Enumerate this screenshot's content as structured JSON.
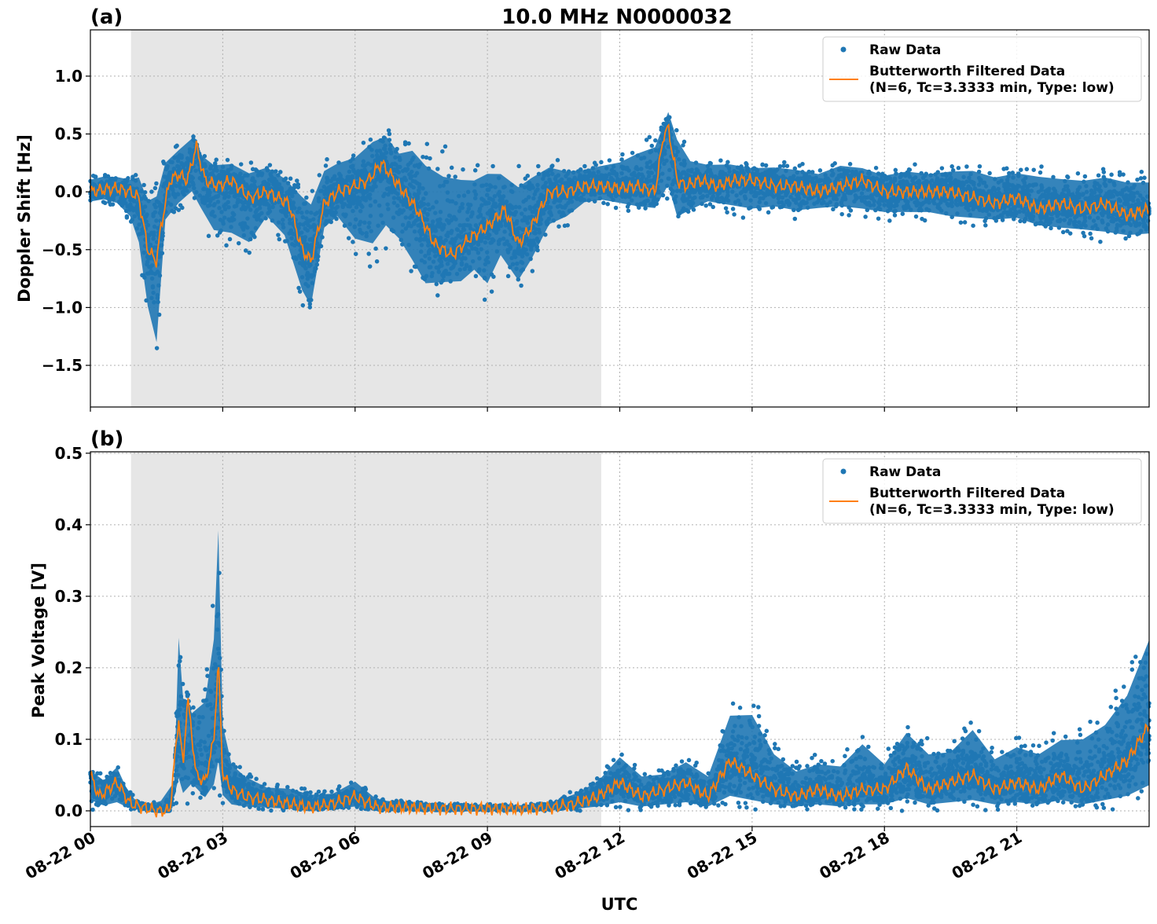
{
  "figure": {
    "title": "10.0 MHz N0000032",
    "x_label": "UTC"
  },
  "colors": {
    "raw": "#1f77b4",
    "filtered": "#ff7f0e",
    "shade": "#e6e6e6",
    "grid": "#b0b0b0"
  },
  "chart_data": [
    {
      "type": "scatter",
      "panel_label": "(a)",
      "ylabel": "Doppler Shift [Hz]",
      "xlim": [
        0,
        24
      ],
      "ylim": [
        -1.86,
        1.4
      ],
      "x_ticks": [
        0,
        3,
        6,
        9,
        12,
        15,
        18,
        21
      ],
      "x_tick_labels": [
        "08-22 00",
        "08-22 03",
        "08-22 06",
        "08-22 09",
        "08-22 12",
        "08-22 15",
        "08-22 18",
        "08-22 21"
      ],
      "y_ticks": [
        1.0,
        0.5,
        0.0,
        -0.5,
        -1.0,
        -1.5
      ],
      "y_tick_labels": [
        "1.0",
        "0.5",
        "0.0",
        "−0.5",
        "−1.0",
        "−1.5"
      ],
      "grid": true,
      "shaded_interval": [
        0.92,
        11.58
      ],
      "legend": {
        "position": "upper right",
        "raw": "Raw Data",
        "filtered_line1": "Butterworth Filtered Data",
        "filtered_line2": "(N=6, Tc=3.3333 min, Type: low)"
      },
      "series": [
        {
          "name": "Raw Data",
          "kind": "scatter-band",
          "x": [
            0,
            0.3,
            0.6,
            0.9,
            1.1,
            1.3,
            1.5,
            1.7,
            2.0,
            2.3,
            2.5,
            2.8,
            3.2,
            3.6,
            4.0,
            4.4,
            4.8,
            5.0,
            5.3,
            5.6,
            6.0,
            6.4,
            6.7,
            7.0,
            7.3,
            7.6,
            8.0,
            8.4,
            8.7,
            9.0,
            9.3,
            9.7,
            10.0,
            10.4,
            10.8,
            11.2,
            11.6,
            12.0,
            12.4,
            12.8,
            13.1,
            13.3,
            13.6,
            14.0,
            14.5,
            15.0,
            15.5,
            16.0,
            16.5,
            17.0,
            17.5,
            18.0,
            18.5,
            19.0,
            19.5,
            20.0,
            20.5,
            21.0,
            21.5,
            22.0,
            22.5,
            23.0,
            23.5,
            24.0
          ],
          "upper": [
            0.15,
            0.18,
            0.17,
            0.15,
            0.2,
            0.1,
            0.2,
            0.4,
            0.45,
            0.55,
            0.35,
            0.3,
            0.3,
            0.25,
            0.3,
            0.2,
            0.15,
            0.1,
            0.3,
            0.35,
            0.4,
            0.55,
            0.6,
            0.45,
            0.55,
            0.45,
            0.4,
            0.35,
            0.3,
            0.35,
            0.3,
            0.25,
            0.3,
            0.3,
            0.25,
            0.25,
            0.3,
            0.35,
            0.45,
            0.55,
            0.75,
            0.6,
            0.35,
            0.3,
            0.3,
            0.25,
            0.28,
            0.25,
            0.22,
            0.3,
            0.25,
            0.2,
            0.25,
            0.22,
            0.25,
            0.28,
            0.22,
            0.25,
            0.25,
            0.2,
            0.2,
            0.22,
            0.2,
            0.18
          ],
          "lower": [
            -0.12,
            -0.1,
            -0.15,
            -0.3,
            -0.6,
            -1.2,
            -1.6,
            -0.3,
            -0.2,
            -0.1,
            -0.3,
            -0.5,
            -0.55,
            -0.6,
            -0.3,
            -0.5,
            -1.0,
            -1.15,
            -0.4,
            -0.3,
            -0.6,
            -0.7,
            -0.5,
            -0.6,
            -0.8,
            -1.0,
            -0.9,
            -0.9,
            -0.8,
            -1.0,
            -0.7,
            -0.9,
            -0.7,
            -0.4,
            -0.3,
            -0.15,
            -0.12,
            -0.15,
            -0.2,
            -0.2,
            -0.15,
            -0.35,
            -0.25,
            -0.15,
            -0.2,
            -0.25,
            -0.2,
            -0.25,
            -0.2,
            -0.2,
            -0.25,
            -0.25,
            -0.25,
            -0.25,
            -0.3,
            -0.3,
            -0.3,
            -0.3,
            -0.35,
            -0.4,
            -0.4,
            -0.45,
            -0.45,
            -0.45
          ]
        },
        {
          "name": "Butterworth Filtered Data",
          "kind": "line",
          "x": [
            0,
            0.3,
            0.6,
            0.9,
            1.1,
            1.3,
            1.5,
            1.6,
            1.8,
            2.0,
            2.2,
            2.4,
            2.6,
            2.9,
            3.2,
            3.6,
            4.0,
            4.5,
            4.8,
            5.0,
            5.3,
            5.6,
            6.0,
            6.3,
            6.6,
            6.9,
            7.1,
            7.4,
            7.8,
            8.2,
            8.6,
            9.0,
            9.4,
            9.7,
            10.0,
            10.4,
            10.8,
            11.2,
            11.6,
            12.0,
            12.4,
            12.8,
            13.0,
            13.1,
            13.3,
            13.5,
            13.8,
            14.2,
            14.6,
            15.0,
            15.5,
            16.0,
            16.5,
            17.0,
            17.5,
            18.0,
            18.5,
            19.0,
            19.5,
            20.0,
            20.5,
            21.0,
            21.5,
            22.0,
            22.5,
            23.0,
            23.5,
            24.0
          ],
          "y": [
            0.0,
            0.02,
            0.03,
            0.0,
            -0.05,
            -0.5,
            -0.6,
            -0.3,
            0.1,
            0.15,
            0.1,
            0.4,
            0.1,
            0.05,
            0.1,
            -0.05,
            0.0,
            -0.1,
            -0.5,
            -0.6,
            -0.1,
            0.0,
            0.05,
            0.1,
            0.25,
            0.1,
            0.0,
            -0.15,
            -0.45,
            -0.55,
            -0.4,
            -0.3,
            -0.15,
            -0.45,
            -0.3,
            0.0,
            0.0,
            0.05,
            0.05,
            0.03,
            0.05,
            0.0,
            0.5,
            0.55,
            0.1,
            0.05,
            0.1,
            0.05,
            0.1,
            0.1,
            0.05,
            0.05,
            0.0,
            0.05,
            0.1,
            0.0,
            0.0,
            0.0,
            0.0,
            -0.05,
            -0.1,
            -0.05,
            -0.15,
            -0.1,
            -0.15,
            -0.1,
            -0.2,
            -0.15
          ]
        }
      ]
    },
    {
      "type": "scatter",
      "panel_label": "(b)",
      "ylabel": "Peak Voltage [V]",
      "xlim": [
        0,
        24
      ],
      "ylim": [
        -0.022,
        0.502
      ],
      "x_ticks": [
        0,
        3,
        6,
        9,
        12,
        15,
        18,
        21
      ],
      "x_tick_labels": [
        "08-22 00",
        "08-22 03",
        "08-22 06",
        "08-22 09",
        "08-22 12",
        "08-22 15",
        "08-22 18",
        "08-22 21"
      ],
      "y_ticks": [
        0.5,
        0.4,
        0.3,
        0.2,
        0.1,
        0.0
      ],
      "y_tick_labels": [
        "0.5",
        "0.4",
        "0.3",
        "0.2",
        "0.1",
        "0.0"
      ],
      "grid": true,
      "shaded_interval": [
        0.92,
        11.58
      ],
      "legend": {
        "position": "upper right",
        "raw": "Raw Data",
        "filtered_line1": "Butterworth Filtered Data",
        "filtered_line2": "(N=6, Tc=3.3333 min, Type: low)"
      },
      "series": [
        {
          "name": "Raw Data",
          "kind": "scatter-band",
          "x": [
            0,
            0.3,
            0.6,
            0.8,
            1.0,
            1.3,
            1.6,
            1.9,
            2.0,
            2.1,
            2.3,
            2.6,
            2.8,
            2.9,
            3.0,
            3.2,
            3.5,
            4.0,
            4.5,
            5.0,
            5.5,
            6.0,
            6.5,
            7.0,
            8.0,
            9.0,
            10.0,
            10.5,
            11.0,
            11.5,
            12.0,
            12.5,
            13.0,
            13.5,
            14.0,
            14.5,
            15.0,
            15.5,
            16.0,
            16.5,
            17.0,
            17.5,
            18.0,
            18.5,
            19.0,
            19.5,
            20.0,
            20.5,
            21.0,
            21.5,
            22.0,
            22.5,
            23.0,
            23.5,
            24.0
          ],
          "upper": [
            0.06,
            0.05,
            0.07,
            0.04,
            0.02,
            0.01,
            0.02,
            0.03,
            0.29,
            0.2,
            0.15,
            0.2,
            0.3,
            0.47,
            0.15,
            0.08,
            0.06,
            0.04,
            0.04,
            0.03,
            0.03,
            0.05,
            0.02,
            0.015,
            0.01,
            0.01,
            0.01,
            0.015,
            0.03,
            0.05,
            0.09,
            0.06,
            0.06,
            0.08,
            0.06,
            0.16,
            0.17,
            0.1,
            0.07,
            0.08,
            0.08,
            0.12,
            0.08,
            0.13,
            0.1,
            0.1,
            0.14,
            0.09,
            0.11,
            0.1,
            0.12,
            0.13,
            0.15,
            0.2,
            0.29
          ],
          "lower": [
            0.0,
            0.0,
            0.0,
            0.0,
            0.0,
            0.0,
            0.0,
            0.0,
            0.01,
            0.01,
            0.01,
            0.01,
            0.01,
            0.01,
            0.01,
            0.0,
            0.0,
            0.0,
            0.0,
            0.0,
            0.0,
            0.0,
            0.0,
            0.0,
            0.0,
            0.0,
            0.0,
            0.0,
            0.0,
            0.0,
            0.0,
            0.0,
            0.0,
            0.0,
            0.0,
            0.0,
            0.0,
            0.0,
            0.0,
            0.0,
            0.0,
            0.0,
            0.0,
            0.0,
            0.0,
            0.0,
            0.0,
            0.0,
            0.0,
            0.0,
            0.0,
            0.0,
            0.0,
            0.0,
            0.0
          ]
        },
        {
          "name": "Butterworth Filtered Data",
          "kind": "line",
          "x": [
            0,
            0.2,
            0.4,
            0.6,
            0.9,
            1.2,
            1.5,
            1.8,
            2.0,
            2.1,
            2.2,
            2.4,
            2.6,
            2.8,
            2.9,
            3.0,
            3.2,
            3.5,
            4.0,
            4.5,
            5.0,
            5.5,
            6.0,
            6.5,
            7.0,
            8.0,
            9.0,
            10.0,
            10.5,
            11.0,
            11.5,
            12.0,
            12.5,
            13.0,
            13.5,
            14.0,
            14.5,
            15.0,
            15.5,
            16.0,
            16.5,
            17.0,
            17.5,
            18.0,
            18.5,
            19.0,
            19.5,
            20.0,
            20.5,
            21.0,
            21.5,
            22.0,
            22.5,
            23.0,
            23.5,
            24.0
          ],
          "y": [
            0.05,
            0.02,
            0.03,
            0.04,
            0.01,
            0.005,
            0.0,
            0.0,
            0.13,
            0.06,
            0.16,
            0.05,
            0.04,
            0.1,
            0.21,
            0.05,
            0.03,
            0.02,
            0.015,
            0.01,
            0.005,
            0.01,
            0.02,
            0.005,
            0.005,
            0.003,
            0.003,
            0.003,
            0.005,
            0.01,
            0.02,
            0.04,
            0.02,
            0.03,
            0.04,
            0.02,
            0.07,
            0.05,
            0.03,
            0.02,
            0.03,
            0.02,
            0.03,
            0.03,
            0.06,
            0.03,
            0.04,
            0.05,
            0.03,
            0.04,
            0.03,
            0.05,
            0.03,
            0.05,
            0.07,
            0.12
          ]
        }
      ]
    }
  ]
}
